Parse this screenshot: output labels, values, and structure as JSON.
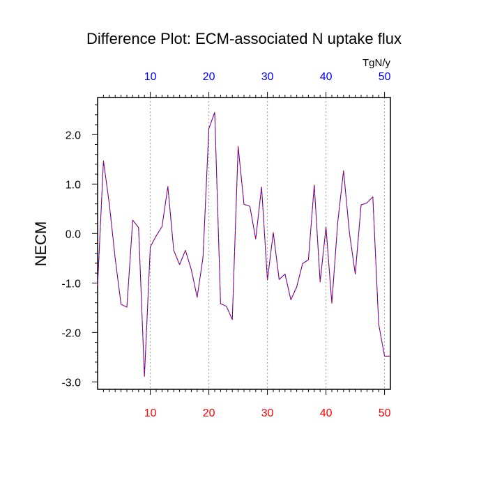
{
  "chart_data": {
    "type": "line",
    "title": "Difference Plot: ECM-associated N uptake flux",
    "ylabel": "NECM",
    "top_axis_unit": "TgN/y",
    "xlim": [
      1,
      51
    ],
    "ylim": [
      -3.15,
      2.75
    ],
    "x_ticks": [
      10,
      20,
      30,
      40,
      50
    ],
    "x_tick_labels": [
      "10",
      "20",
      "30",
      "40",
      "50"
    ],
    "y_ticks": [
      -3,
      -2,
      -1,
      0,
      1,
      2
    ],
    "y_tick_labels": [
      "-3.0",
      "-2.0",
      "-1.0",
      "0.0",
      "1.0",
      "2.0"
    ],
    "vertical_gridlines": true,
    "colors": {
      "bottom_tick_labels": "#ff0000",
      "top_tick_labels": "#0000ff",
      "line_solid": "#0000ff",
      "line_dash": "#ff0000",
      "axis": "#000000",
      "grid": "#9a9a9a"
    },
    "series": [
      {
        "x": [
          1,
          2,
          3,
          4,
          5,
          6,
          7,
          8,
          9,
          10,
          11,
          12,
          13,
          14,
          15,
          16,
          17,
          18,
          19,
          20,
          21,
          22,
          23,
          24,
          25,
          26,
          27,
          28,
          29,
          30,
          31,
          32,
          33,
          34,
          35,
          36,
          37,
          38,
          39,
          40,
          41,
          42,
          43,
          44,
          45,
          46,
          47,
          48,
          49,
          50,
          51
        ],
        "values": [
          -1.05,
          1.47,
          0.6,
          -0.5,
          -1.43,
          -1.49,
          0.27,
          0.12,
          -2.89,
          -0.27,
          -0.05,
          0.14,
          0.95,
          -0.34,
          -0.63,
          -0.34,
          -0.73,
          -1.29,
          -0.48,
          2.12,
          2.45,
          -1.42,
          -1.47,
          -1.74,
          1.76,
          0.59,
          0.55,
          -0.11,
          0.94,
          -0.94,
          0.02,
          -0.93,
          -0.82,
          -1.34,
          -1.08,
          -0.61,
          -0.53,
          0.98,
          -0.98,
          0.13,
          -1.41,
          0.22,
          1.27,
          0.02,
          -0.82,
          0.58,
          0.62,
          0.74,
          -1.83,
          -2.48,
          -2.48
        ]
      }
    ]
  }
}
